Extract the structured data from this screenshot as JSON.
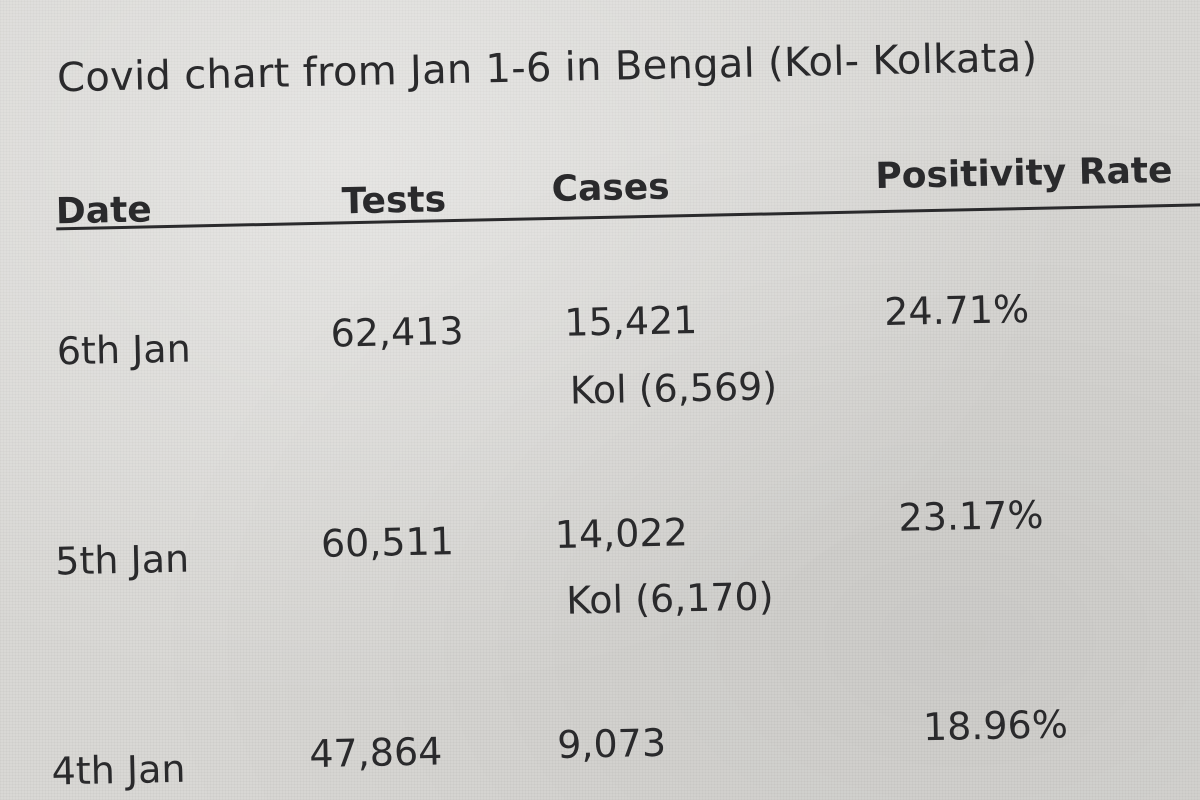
{
  "document": {
    "title": "Covid chart from Jan 1-6 in Bengal (Kol- Kolkata)",
    "headers": {
      "date": "Date",
      "tests": "Tests",
      "cases": "Cases",
      "positivity": "Positivity Rate"
    },
    "rows": [
      {
        "date": "6th Jan",
        "tests": "62,413",
        "cases": "15,421",
        "kolkata": "Kol (6,569)",
        "positivity": "24.71%"
      },
      {
        "date": "5th Jan",
        "tests": "60,511",
        "cases": "14,022",
        "kolkata": "Kol (6,170)",
        "positivity": "23.17%"
      },
      {
        "date": "4th Jan",
        "tests": "47,864",
        "cases": "9,073",
        "positivity": "18.96%"
      }
    ]
  }
}
